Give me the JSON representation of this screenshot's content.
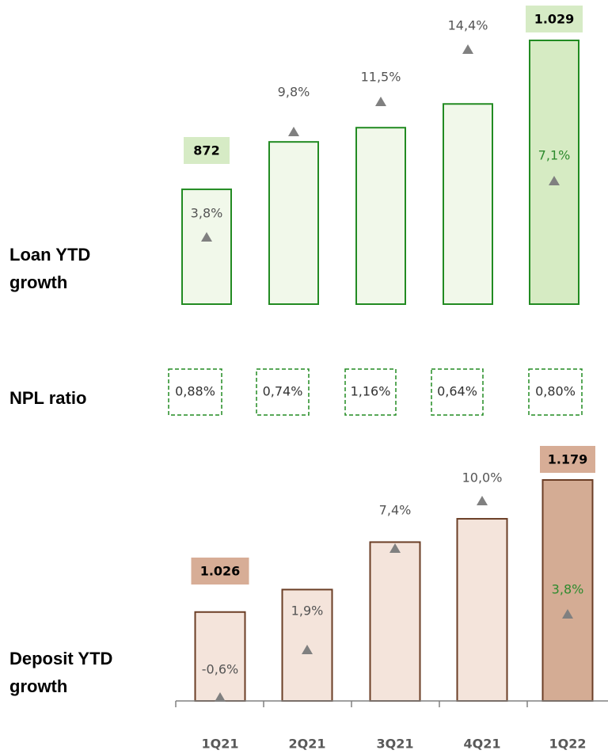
{
  "chart_data": {
    "type": "bar",
    "categories": [
      "1Q21",
      "2Q21",
      "3Q21",
      "4Q21",
      "1Q22"
    ],
    "panels": [
      {
        "title": "Loan YTD growth",
        "values": [
          872,
          922,
          937,
          962,
          1029
        ],
        "value_labels": [
          "872",
          null,
          null,
          null,
          "1.029"
        ],
        "growth": [
          3.8,
          9.8,
          11.5,
          14.4,
          7.1
        ],
        "growth_labels": [
          "3,8%",
          "9,8%",
          "11,5%",
          "14,4%",
          "7,1%"
        ],
        "ylim": [
          751,
          1029
        ],
        "color": "#228b22",
        "fill": "#f1f8ea",
        "highlight_fill": "#d6ebc3",
        "label_fill": "#d6ebc5",
        "growth_color": "#555555",
        "highlight_growth_color": "#2e8b2e"
      },
      {
        "title": "Deposit YTD growth",
        "values": [
          1026,
          1052,
          1107,
          1134,
          1179
        ],
        "value_labels": [
          "1.026",
          null,
          null,
          null,
          "1.179"
        ],
        "growth": [
          -0.6,
          1.9,
          7.4,
          10.0,
          3.8
        ],
        "growth_labels": [
          "-0,6%",
          "1,9%",
          "7,4%",
          "10,0%",
          "3,8%"
        ],
        "ylim": [
          923,
          1179
        ],
        "color": "#6b3e26",
        "fill": "#f4e4db",
        "highlight_fill": "#d4ac94",
        "label_fill": "#d7ad96",
        "growth_color": "#555555",
        "highlight_growth_color": "#2e8b2e"
      }
    ],
    "npl": {
      "title": "NPL ratio",
      "values": [
        0.88,
        0.74,
        1.16,
        0.64,
        0.8
      ],
      "value_labels": [
        "0,88%",
        "0,74%",
        "1,16%",
        "0,64%",
        "0,80%"
      ],
      "color": "#228b22"
    }
  }
}
